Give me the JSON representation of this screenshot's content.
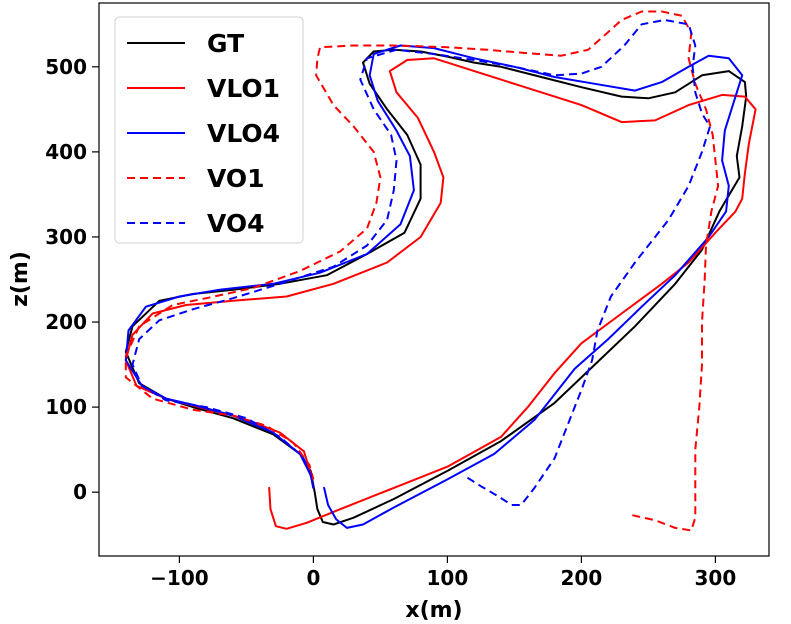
{
  "chart_data": {
    "type": "line",
    "title": "",
    "xlabel": "x(m)",
    "ylabel": "z(m)",
    "xlim": [
      -160,
      340
    ],
    "ylim": [
      -75,
      575
    ],
    "grid": false,
    "legend_position": "top-left",
    "x_ticks": [
      {
        "value": -100,
        "label": "−100"
      },
      {
        "value": 0,
        "label": "0"
      },
      {
        "value": 100,
        "label": "100"
      },
      {
        "value": 200,
        "label": "200"
      },
      {
        "value": 300,
        "label": "300"
      }
    ],
    "y_ticks": [
      {
        "value": 0,
        "label": "0"
      },
      {
        "value": 100,
        "label": "100"
      },
      {
        "value": 200,
        "label": "200"
      },
      {
        "value": 300,
        "label": "300"
      },
      {
        "value": 400,
        "label": "400"
      },
      {
        "value": 500,
        "label": "500"
      }
    ],
    "series": [
      {
        "name": "GT",
        "color": "#000000",
        "dashed": false,
        "points": [
          [
            1,
            0
          ],
          [
            3,
            -20
          ],
          [
            7,
            -35
          ],
          [
            15,
            -38
          ],
          [
            30,
            -30
          ],
          [
            60,
            -8
          ],
          [
            100,
            25
          ],
          [
            140,
            60
          ],
          [
            180,
            105
          ],
          [
            210,
            150
          ],
          [
            240,
            195
          ],
          [
            270,
            245
          ],
          [
            290,
            285
          ],
          [
            303,
            330
          ],
          [
            318,
            370
          ],
          [
            316,
            395
          ],
          [
            320,
            430
          ],
          [
            323,
            465
          ],
          [
            322,
            482
          ],
          [
            310,
            495
          ],
          [
            290,
            490
          ],
          [
            270,
            470
          ],
          [
            250,
            463
          ],
          [
            230,
            465
          ],
          [
            200,
            476
          ],
          [
            170,
            488
          ],
          [
            140,
            500
          ],
          [
            120,
            505
          ],
          [
            100,
            512
          ],
          [
            80,
            518
          ],
          [
            60,
            520
          ],
          [
            45,
            518
          ],
          [
            37,
            505
          ],
          [
            42,
            480
          ],
          [
            55,
            450
          ],
          [
            70,
            420
          ],
          [
            80,
            385
          ],
          [
            80,
            345
          ],
          [
            68,
            305
          ],
          [
            40,
            280
          ],
          [
            10,
            255
          ],
          [
            -25,
            245
          ],
          [
            -60,
            238
          ],
          [
            -90,
            233
          ],
          [
            -115,
            225
          ],
          [
            -135,
            195
          ],
          [
            -140,
            165
          ],
          [
            -130,
            128
          ],
          [
            -110,
            110
          ],
          [
            -90,
            100
          ],
          [
            -60,
            87
          ],
          [
            -30,
            68
          ],
          [
            -10,
            45
          ],
          [
            -2,
            25
          ],
          [
            1,
            0
          ]
        ]
      },
      {
        "name": "VLO1",
        "color": "#ff0000",
        "dashed": false,
        "points": [
          [
            -33,
            5
          ],
          [
            -32,
            -20
          ],
          [
            -28,
            -40
          ],
          [
            -20,
            -43
          ],
          [
            -5,
            -36
          ],
          [
            20,
            -20
          ],
          [
            60,
            5
          ],
          [
            100,
            30
          ],
          [
            140,
            65
          ],
          [
            160,
            100
          ],
          [
            180,
            140
          ],
          [
            200,
            175
          ],
          [
            230,
            210
          ],
          [
            260,
            245
          ],
          [
            280,
            270
          ],
          [
            300,
            305
          ],
          [
            315,
            330
          ],
          [
            320,
            345
          ],
          [
            322,
            375
          ],
          [
            325,
            410
          ],
          [
            330,
            450
          ],
          [
            322,
            465
          ],
          [
            305,
            467
          ],
          [
            280,
            455
          ],
          [
            255,
            437
          ],
          [
            230,
            435
          ],
          [
            200,
            455
          ],
          [
            170,
            470
          ],
          [
            140,
            485
          ],
          [
            110,
            500
          ],
          [
            90,
            510
          ],
          [
            70,
            508
          ],
          [
            57,
            495
          ],
          [
            62,
            470
          ],
          [
            78,
            440
          ],
          [
            90,
            400
          ],
          [
            97,
            370
          ],
          [
            95,
            340
          ],
          [
            80,
            300
          ],
          [
            55,
            270
          ],
          [
            15,
            245
          ],
          [
            -20,
            230
          ],
          [
            -60,
            225
          ],
          [
            -95,
            220
          ],
          [
            -120,
            210
          ],
          [
            -135,
            185
          ],
          [
            -140,
            155
          ],
          [
            -132,
            125
          ],
          [
            -110,
            110
          ],
          [
            -85,
            100
          ],
          [
            -55,
            88
          ],
          [
            -25,
            70
          ],
          [
            -7,
            48
          ],
          [
            -2,
            22
          ],
          [
            0,
            5
          ]
        ]
      },
      {
        "name": "VLO4",
        "color": "#0000ff",
        "dashed": false,
        "points": [
          [
            8,
            5
          ],
          [
            11,
            -15
          ],
          [
            17,
            -32
          ],
          [
            25,
            -42
          ],
          [
            37,
            -38
          ],
          [
            60,
            -18
          ],
          [
            100,
            15
          ],
          [
            135,
            45
          ],
          [
            165,
            85
          ],
          [
            195,
            145
          ],
          [
            220,
            180
          ],
          [
            245,
            218
          ],
          [
            270,
            255
          ],
          [
            295,
            300
          ],
          [
            308,
            330
          ],
          [
            310,
            360
          ],
          [
            305,
            390
          ],
          [
            307,
            425
          ],
          [
            315,
            465
          ],
          [
            320,
            490
          ],
          [
            310,
            510
          ],
          [
            295,
            513
          ],
          [
            280,
            500
          ],
          [
            260,
            482
          ],
          [
            240,
            472
          ],
          [
            210,
            480
          ],
          [
            180,
            488
          ],
          [
            150,
            500
          ],
          [
            120,
            510
          ],
          [
            90,
            522
          ],
          [
            65,
            525
          ],
          [
            45,
            515
          ],
          [
            42,
            490
          ],
          [
            48,
            460
          ],
          [
            62,
            425
          ],
          [
            72,
            395
          ],
          [
            75,
            355
          ],
          [
            65,
            315
          ],
          [
            40,
            280
          ],
          [
            5,
            258
          ],
          [
            -30,
            245
          ],
          [
            -70,
            238
          ],
          [
            -100,
            230
          ],
          [
            -125,
            218
          ],
          [
            -138,
            190
          ],
          [
            -140,
            155
          ],
          [
            -128,
            125
          ],
          [
            -110,
            110
          ],
          [
            -88,
            102
          ],
          [
            -60,
            90
          ],
          [
            -30,
            70
          ],
          [
            -10,
            45
          ],
          [
            -2,
            20
          ],
          [
            0,
            5
          ]
        ]
      },
      {
        "name": "VO1",
        "color": "#ff0000",
        "dashed": true,
        "points": [
          [
            238,
            -27
          ],
          [
            255,
            -33
          ],
          [
            270,
            -42
          ],
          [
            282,
            -45
          ],
          [
            285,
            -30
          ],
          [
            285,
            0
          ],
          [
            285,
            50
          ],
          [
            288,
            100
          ],
          [
            290,
            150
          ],
          [
            290,
            200
          ],
          [
            292,
            250
          ],
          [
            293,
            290
          ],
          [
            297,
            330
          ],
          [
            302,
            360
          ],
          [
            300,
            390
          ],
          [
            298,
            420
          ],
          [
            293,
            450
          ],
          [
            285,
            480
          ],
          [
            280,
            510
          ],
          [
            282,
            540
          ],
          [
            275,
            560
          ],
          [
            260,
            565
          ],
          [
            245,
            565
          ],
          [
            230,
            555
          ],
          [
            218,
            538
          ],
          [
            205,
            520
          ],
          [
            185,
            513
          ],
          [
            160,
            516
          ],
          [
            130,
            520
          ],
          [
            100,
            523
          ],
          [
            60,
            525
          ],
          [
            30,
            525
          ],
          [
            5,
            523
          ],
          [
            3,
            510
          ],
          [
            2,
            490
          ],
          [
            15,
            455
          ],
          [
            30,
            430
          ],
          [
            45,
            400
          ],
          [
            50,
            370
          ],
          [
            47,
            340
          ],
          [
            40,
            310
          ],
          [
            20,
            283
          ],
          [
            -10,
            260
          ],
          [
            -45,
            240
          ],
          [
            -80,
            228
          ],
          [
            -105,
            220
          ],
          [
            -130,
            195
          ],
          [
            -140,
            160
          ],
          [
            -140,
            135
          ],
          [
            -120,
            110
          ],
          [
            -90,
            97
          ],
          [
            -60,
            90
          ],
          [
            -35,
            78
          ],
          [
            -15,
            58
          ],
          [
            -3,
            32
          ],
          [
            0,
            15
          ]
        ]
      },
      {
        "name": "VO4",
        "color": "#0000ff",
        "dashed": true,
        "points": [
          [
            115,
            17
          ],
          [
            125,
            7
          ],
          [
            138,
            -5
          ],
          [
            148,
            -15
          ],
          [
            155,
            -15
          ],
          [
            165,
            5
          ],
          [
            180,
            40
          ],
          [
            190,
            80
          ],
          [
            200,
            120
          ],
          [
            208,
            155
          ],
          [
            212,
            190
          ],
          [
            222,
            230
          ],
          [
            240,
            270
          ],
          [
            265,
            320
          ],
          [
            280,
            360
          ],
          [
            290,
            400
          ],
          [
            296,
            430
          ],
          [
            290,
            445
          ],
          [
            285,
            470
          ],
          [
            283,
            500
          ],
          [
            285,
            525
          ],
          [
            280,
            550
          ],
          [
            262,
            555
          ],
          [
            245,
            550
          ],
          [
            232,
            525
          ],
          [
            215,
            500
          ],
          [
            200,
            492
          ],
          [
            180,
            490
          ],
          [
            150,
            500
          ],
          [
            120,
            508
          ],
          [
            90,
            515
          ],
          [
            62,
            520
          ],
          [
            40,
            510
          ],
          [
            35,
            485
          ],
          [
            45,
            450
          ],
          [
            58,
            420
          ],
          [
            62,
            390
          ],
          [
            60,
            355
          ],
          [
            55,
            320
          ],
          [
            40,
            290
          ],
          [
            15,
            265
          ],
          [
            -25,
            245
          ],
          [
            -60,
            228
          ],
          [
            -90,
            215
          ],
          [
            -115,
            202
          ],
          [
            -130,
            180
          ],
          [
            -135,
            150
          ],
          [
            -128,
            125
          ],
          [
            -110,
            108
          ],
          [
            -80,
            100
          ],
          [
            -50,
            87
          ],
          [
            -25,
            65
          ],
          [
            -8,
            42
          ],
          [
            -2,
            20
          ],
          [
            0,
            5
          ]
        ]
      }
    ]
  }
}
